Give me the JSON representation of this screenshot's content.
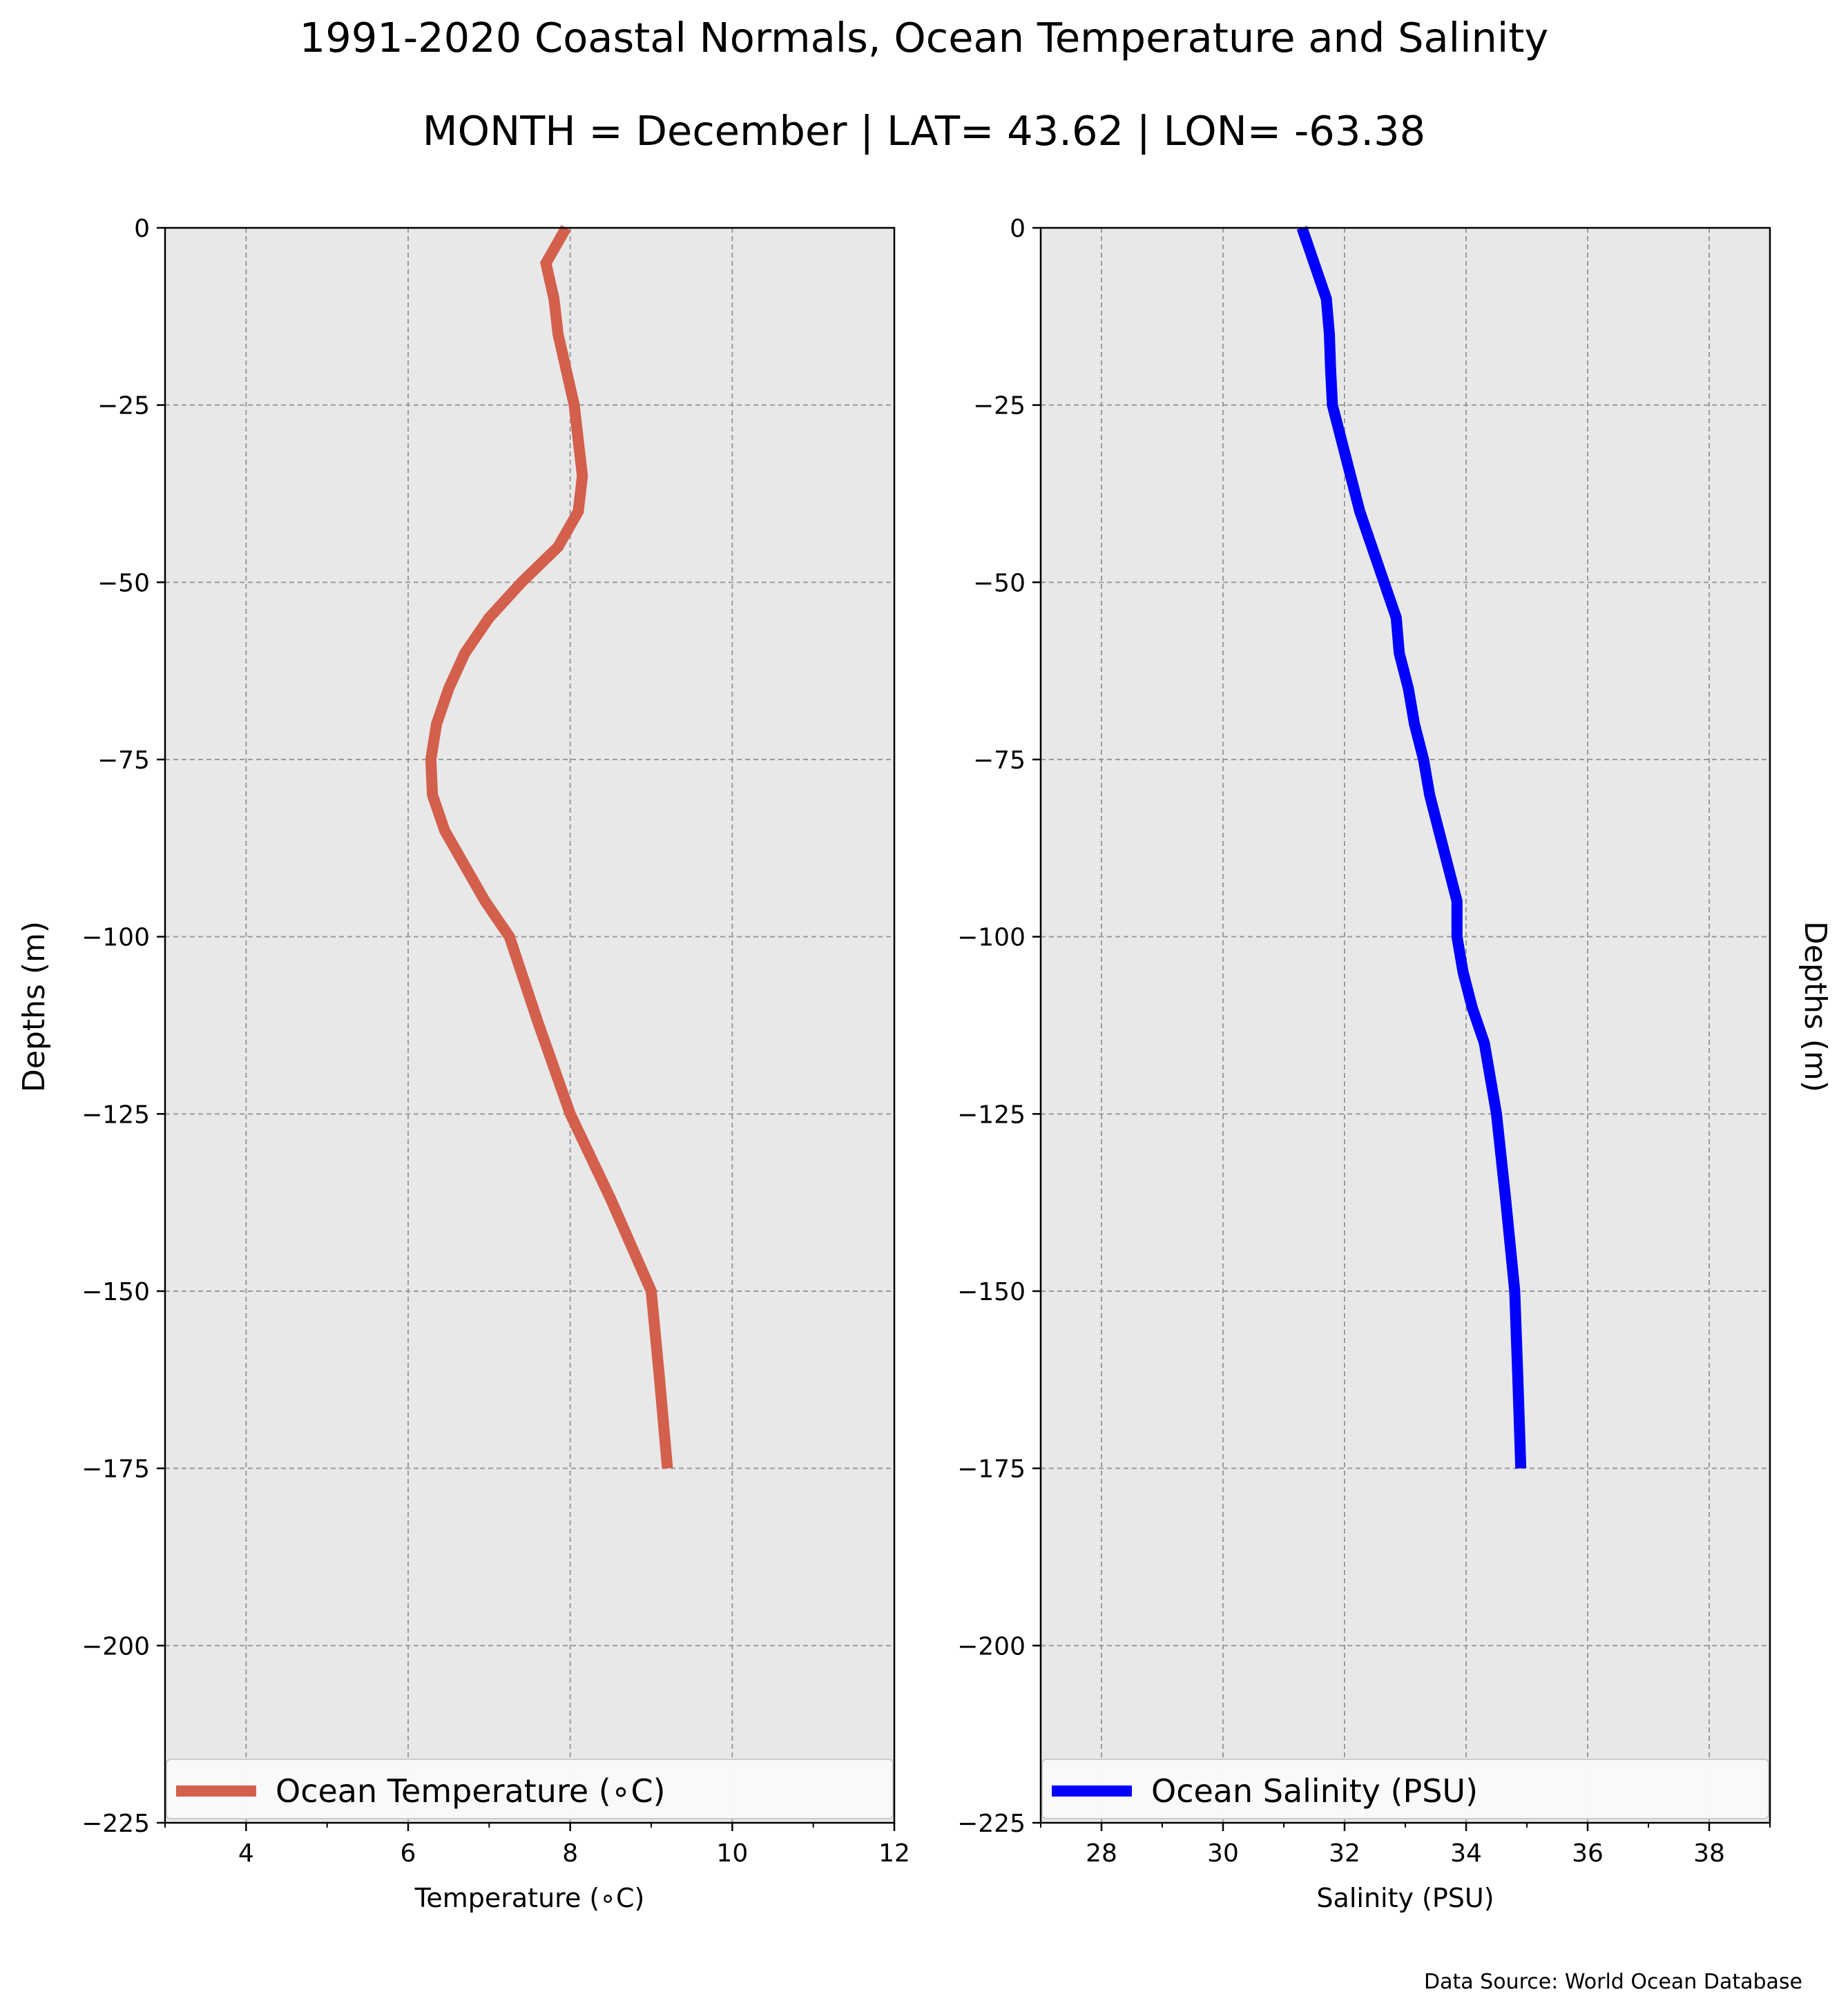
{
  "figure": {
    "title_line1": "1991-2020 Coastal Normals, Ocean Temperature and Salinity",
    "title_line2": "MONTH = December | LAT= 43.62 | LON= -63.38",
    "source": "Data Source: World Ocean Database"
  },
  "chart_data": [
    {
      "type": "line",
      "xlabel": "Temperature (∘C)",
      "ylabel": "Depths (m)",
      "xlim": [
        3,
        12
      ],
      "ylim": [
        -225,
        0
      ],
      "xticks": [
        4,
        6,
        8,
        10,
        12
      ],
      "xtick_labels": [
        "4",
        "6",
        "8",
        "10",
        "12"
      ],
      "yticks": [
        0,
        -25,
        -50,
        -75,
        -100,
        -125,
        -150,
        -175,
        -200,
        -225
      ],
      "ytick_labels": [
        "0",
        "−25",
        "−50",
        "−75",
        "−100",
        "−125",
        "−150",
        "−175",
        "−200",
        "−225"
      ],
      "grid": true,
      "legend": "bottom",
      "series": [
        {
          "name": "Ocean Temperature (∘C)",
          "color": "#d35f4d",
          "x": [
            7.95,
            7.7,
            7.8,
            7.85,
            7.95,
            8.05,
            8.15,
            8.1,
            7.85,
            7.4,
            7.0,
            6.7,
            6.5,
            6.35,
            6.28,
            6.3,
            6.45,
            6.7,
            6.95,
            7.25,
            7.6,
            8.0,
            8.5,
            9.0,
            9.1,
            9.2
          ],
          "y": [
            0,
            -5,
            -10,
            -15,
            -20,
            -25,
            -35,
            -40,
            -45,
            -50,
            -55,
            -60,
            -65,
            -70,
            -75,
            -80,
            -85,
            -90,
            -95,
            -100,
            -112,
            -125,
            -137,
            -150,
            -162,
            -175
          ]
        }
      ]
    },
    {
      "type": "line",
      "xlabel": "Salinity (PSU)",
      "ylabel": "Depths (m)",
      "xlim": [
        27,
        39
      ],
      "ylim": [
        -225,
        0
      ],
      "xticks": [
        28,
        30,
        32,
        34,
        36,
        38
      ],
      "xtick_labels": [
        "28",
        "30",
        "32",
        "34",
        "36",
        "38"
      ],
      "yticks": [
        0,
        -25,
        -50,
        -75,
        -100,
        -125,
        -150,
        -175,
        -200,
        -225
      ],
      "ytick_labels": [
        "0",
        "−25",
        "−50",
        "−75",
        "−100",
        "−125",
        "−150",
        "−175",
        "−200",
        "−225"
      ],
      "grid": true,
      "legend": "bottom",
      "series": [
        {
          "name": "Ocean Salinity (PSU)",
          "color": "#0000ff",
          "x": [
            31.3,
            31.5,
            31.7,
            31.75,
            31.77,
            31.8,
            31.95,
            32.1,
            32.25,
            32.45,
            32.65,
            32.85,
            32.9,
            33.05,
            33.15,
            33.3,
            33.4,
            33.55,
            33.7,
            33.85,
            33.85,
            33.95,
            34.1,
            34.3,
            34.5,
            34.65,
            34.8,
            34.85,
            34.9
          ],
          "y": [
            0,
            -5,
            -10,
            -15,
            -20,
            -25,
            -30,
            -35,
            -40,
            -45,
            -50,
            -55,
            -60,
            -65,
            -70,
            -75,
            -80,
            -85,
            -90,
            -95,
            -100,
            -105,
            -110,
            -115,
            -125,
            -137,
            -150,
            -162,
            -175
          ]
        }
      ]
    }
  ]
}
